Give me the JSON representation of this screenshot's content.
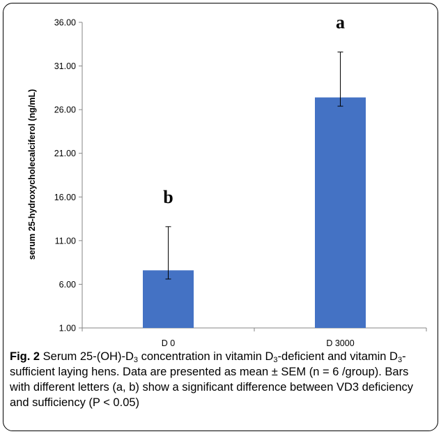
{
  "chart_data": {
    "type": "bar",
    "categories": [
      "D 0",
      "D 3000"
    ],
    "values": [
      7.6,
      27.4
    ],
    "error_bars": {
      "upper": [
        12.6,
        32.6
      ],
      "lower": [
        6.6,
        26.4
      ]
    },
    "significance_letters": [
      "b",
      "a"
    ],
    "ylabel": "serum 25-hydroxycholecalciferol (ng/mL)",
    "xlabel": "",
    "ylim": [
      1.0,
      36.0
    ],
    "yticks": [
      "1.00",
      "6.00",
      "11.00",
      "16.00",
      "21.00",
      "26.00",
      "31.00",
      "36.00"
    ],
    "grid": false,
    "legend": "none",
    "bar_color": "#4472C4"
  },
  "caption": {
    "label": "Fig. 2",
    "text_parts": [
      " Serum 25-(OH)-D",
      "3",
      " concentration in vitamin D",
      "3",
      "-deficient and vitamin D",
      "3",
      "-sufficient laying hens. Data are presented as mean ± SEM (n = 6 /group). Bars with different letters (a, b) show a significant difference between VD3 deficiency and sufficiency (P < 0.05)"
    ]
  }
}
